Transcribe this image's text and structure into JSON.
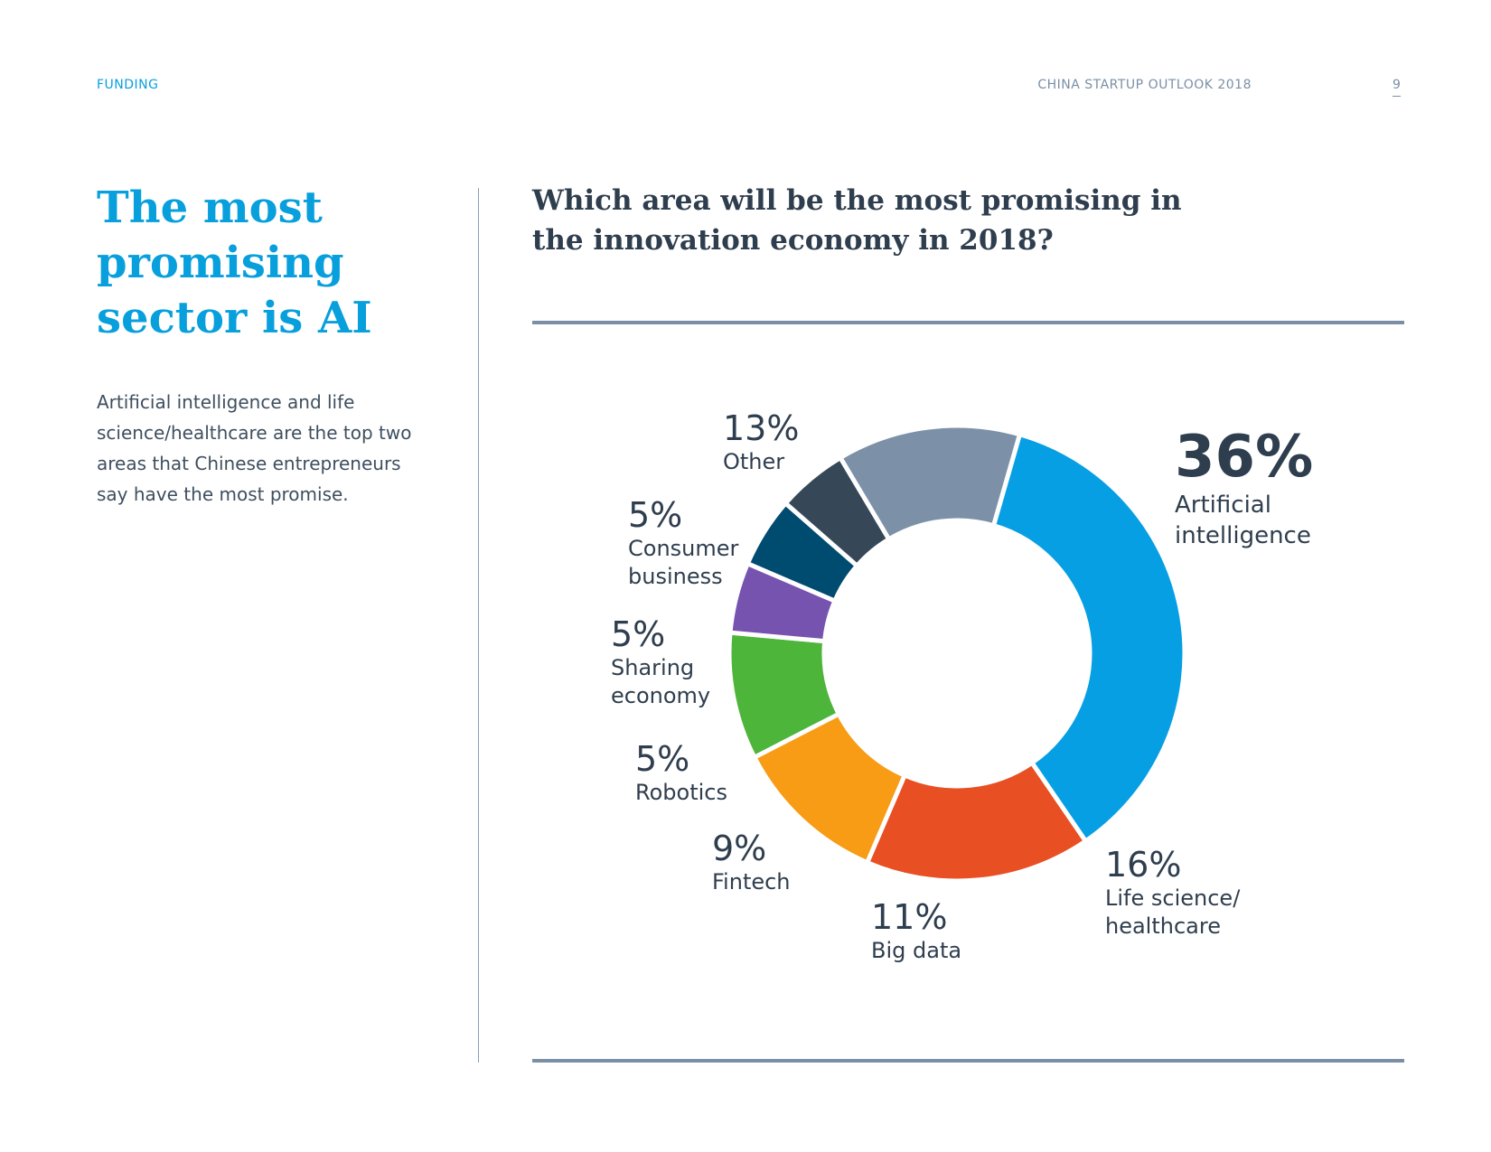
{
  "header": {
    "section": "FUNDING",
    "publication": "CHINA STARTUP OUTLOOK 2018",
    "page_number": "9"
  },
  "left_panel": {
    "title": "The most promising sector is AI",
    "intro": "Artificial intelligence and life science/healthcare are the top two areas that Chinese entrepreneurs say have the most promise."
  },
  "chart_data": {
    "type": "pie",
    "title": "Which area will be the most promising in the innovation economy in 2018?",
    "series": [
      {
        "name": "Artificial intelligence",
        "label_pct": "36%",
        "value": 36,
        "color": "#079fe3",
        "label_lines": [
          "Artificial",
          "intelligence"
        ]
      },
      {
        "name": "Life science/healthcare",
        "label_pct": "16%",
        "value": 16,
        "color": "#e84f22",
        "label_lines": [
          "Life science/",
          "healthcare"
        ]
      },
      {
        "name": "Big data",
        "label_pct": "11%",
        "value": 11,
        "color": "#f79c14",
        "label_lines": [
          "Big data"
        ]
      },
      {
        "name": "Fintech",
        "label_pct": "9%",
        "value": 9,
        "color": "#4db53a",
        "label_lines": [
          "Fintech"
        ]
      },
      {
        "name": "Robotics",
        "label_pct": "5%",
        "value": 5,
        "color": "#7653ae",
        "label_lines": [
          "Robotics"
        ]
      },
      {
        "name": "Sharing economy",
        "label_pct": "5%",
        "value": 5,
        "color": "#004b70",
        "label_lines": [
          "Sharing",
          "economy"
        ]
      },
      {
        "name": "Consumer business",
        "label_pct": "5%",
        "value": 5,
        "color": "#364858",
        "label_lines": [
          "Consumer",
          "business"
        ]
      },
      {
        "name": "Other",
        "label_pct": "13%",
        "value": 13,
        "color": "#7c91a8",
        "label_lines": [
          "Other"
        ]
      }
    ]
  }
}
